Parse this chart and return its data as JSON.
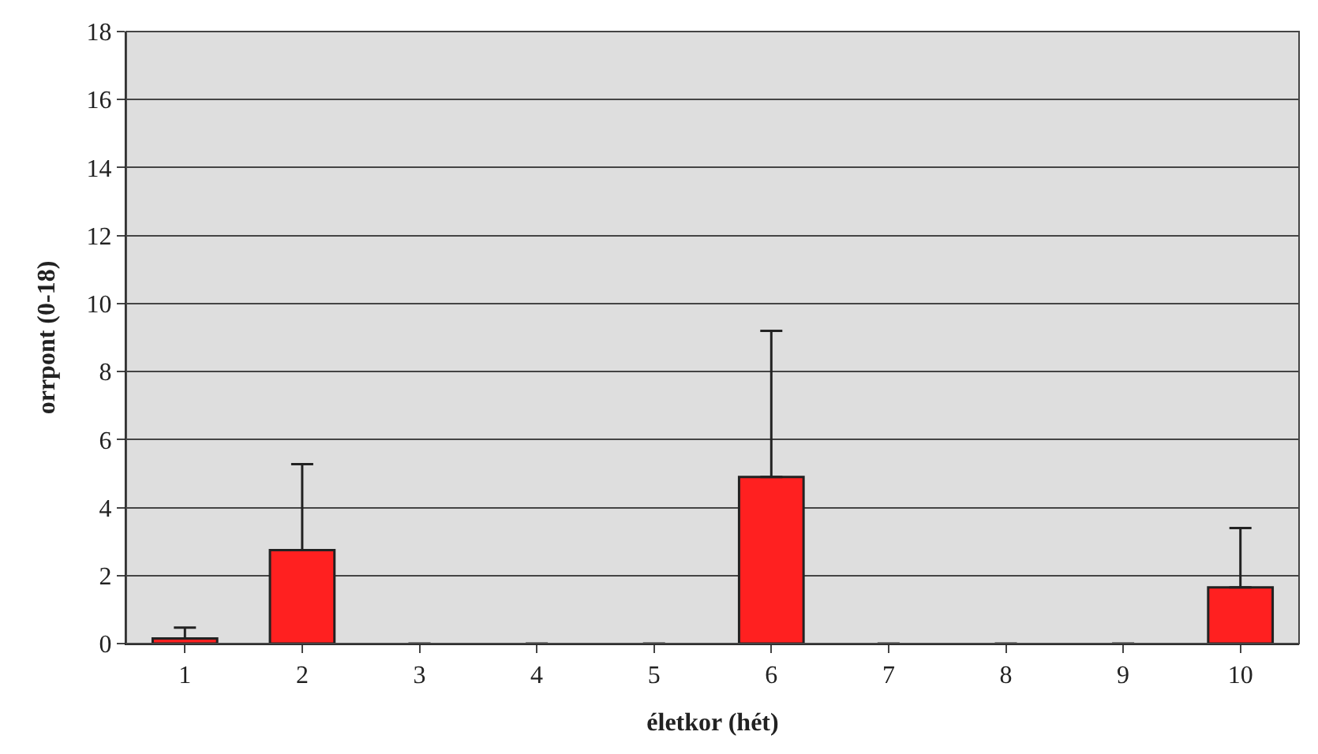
{
  "chart_data": {
    "type": "bar",
    "xlabel": "életkor (hét)",
    "ylabel": "orrpont (0-18)",
    "categories": [
      "1",
      "2",
      "3",
      "4",
      "5",
      "6",
      "7",
      "8",
      "9",
      "10"
    ],
    "values": [
      0.15,
      2.75,
      0,
      0,
      0,
      4.9,
      0,
      0,
      0,
      1.65
    ],
    "errors": [
      [
        0.15,
        0.47
      ],
      [
        2.75,
        5.28
      ],
      null,
      null,
      null,
      [
        4.9,
        9.2
      ],
      null,
      null,
      null,
      [
        1.65,
        3.4
      ]
    ],
    "color": "#ff2020",
    "ylim": [
      0,
      18
    ],
    "yticks": [
      0,
      2,
      4,
      6,
      8,
      10,
      12,
      14,
      16,
      18
    ],
    "grid": "y",
    "legend": false
  }
}
